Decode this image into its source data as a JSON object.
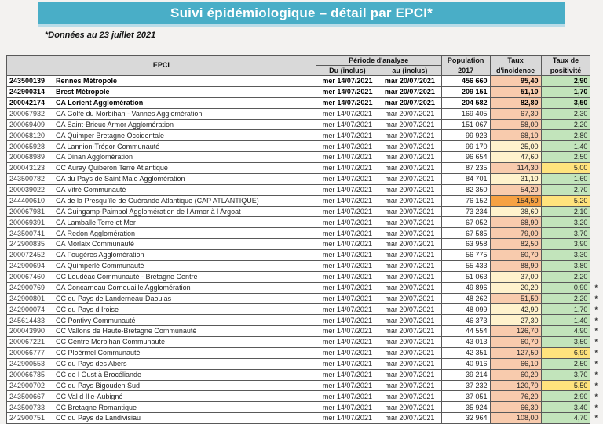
{
  "title": "Suivi épidémiologique – détail par EPCI*",
  "subtitle": "*Données au 23 juillet 2021",
  "colors": {
    "banner": "#49aec7",
    "header_bg": "#d9d9d9",
    "border": "#595959",
    "cream": "#fff2cc",
    "salmon": "#f8cbad",
    "orange": "#f6a143",
    "green": "#c2e4bb",
    "yellow": "#ffe37d",
    "link_blue": "#2e74b5"
  },
  "table": {
    "headers": {
      "epci": "EPCI",
      "periode": "Période d'analyse",
      "du": "Du (inclus)",
      "au": "au (inclus)",
      "population_l1": "Population",
      "population_l2": "2017",
      "incidence_l1": "Taux",
      "incidence_l2": "d'incidence",
      "positivite_l1": "Taux de",
      "positivite_l2": "positivité"
    },
    "rows": [
      {
        "code": "243500139",
        "name": "Rennes Métropole",
        "du": "mer 14/07/2021",
        "au": "mar 20/07/2021",
        "population": "456 660",
        "incidence": "95,40",
        "inc_color": "salmon",
        "positivite": "2,90",
        "pos_color": "green",
        "bold": true,
        "au_highlight": true,
        "note": ""
      },
      {
        "code": "242900314",
        "name": "Brest Métropole",
        "du": "mer 14/07/2021",
        "au": "mar 20/07/2021",
        "population": "209 151",
        "incidence": "51,10",
        "inc_color": "salmon",
        "positivite": "1,70",
        "pos_color": "green",
        "bold": true,
        "note": ""
      },
      {
        "code": "200042174",
        "name": "CA Lorient Agglomération",
        "du": "mer 14/07/2021",
        "au": "mar 20/07/2021",
        "population": "204 582",
        "incidence": "82,80",
        "inc_color": "salmon",
        "positivite": "3,50",
        "pos_color": "green",
        "bold": true,
        "note": ""
      },
      {
        "code": "200067932",
        "name": "CA Golfe du Morbihan - Vannes Agglomération",
        "du": "mer 14/07/2021",
        "au": "mar 20/07/2021",
        "population": "169 405",
        "incidence": "67,30",
        "inc_color": "salmon",
        "positivite": "2,30",
        "pos_color": "green",
        "note": ""
      },
      {
        "code": "200069409",
        "name": "CA Saint-Brieuc Armor Agglomération",
        "du": "mer 14/07/2021",
        "au": "mar 20/07/2021",
        "population": "151 067",
        "incidence": "58,00",
        "inc_color": "salmon",
        "positivite": "2,20",
        "pos_color": "green",
        "note": ""
      },
      {
        "code": "200068120",
        "name": "CA Quimper Bretagne Occidentale",
        "du": "mer 14/07/2021",
        "au": "mar 20/07/2021",
        "population": "99 923",
        "incidence": "68,10",
        "inc_color": "salmon",
        "positivite": "2,80",
        "pos_color": "green",
        "note": ""
      },
      {
        "code": "200065928",
        "name": "CA Lannion-Trégor Communauté",
        "du": "mer 14/07/2021",
        "au": "mar 20/07/2021",
        "population": "99 170",
        "incidence": "25,00",
        "inc_color": "cream",
        "positivite": "1,40",
        "pos_color": "green",
        "note": ""
      },
      {
        "code": "200068989",
        "name": "CA Dinan Agglomération",
        "du": "mer 14/07/2021",
        "au": "mar 20/07/2021",
        "population": "96 654",
        "incidence": "47,60",
        "inc_color": "cream",
        "positivite": "2,50",
        "pos_color": "green",
        "note": ""
      },
      {
        "code": "200043123",
        "name": "CC Auray Quiberon Terre Atlantique",
        "du": "mer 14/07/2021",
        "au": "mar 20/07/2021",
        "population": "87 235",
        "incidence": "114,30",
        "inc_color": "salmon",
        "positivite": "5,00",
        "pos_color": "yellow",
        "note": ""
      },
      {
        "code": "243500782",
        "name": "CA du Pays de Saint Malo Agglomération",
        "du": "mer 14/07/2021",
        "au": "mar 20/07/2021",
        "population": "84 701",
        "incidence": "31,10",
        "inc_color": "cream",
        "positivite": "1,60",
        "pos_color": "green",
        "note": ""
      },
      {
        "code": "200039022",
        "name": "CA Vitré Communauté",
        "du": "mer 14/07/2021",
        "au": "mar 20/07/2021",
        "population": "82 350",
        "incidence": "54,20",
        "inc_color": "salmon",
        "positivite": "2,70",
        "pos_color": "green",
        "note": ""
      },
      {
        "code": "244400610",
        "name": "CA de la Presqu île de Guérande Atlantique (CAP ATLANTIQUE)",
        "du": "mer 14/07/2021",
        "au": "mar 20/07/2021",
        "population": "76 152",
        "incidence": "154,50",
        "inc_color": "orange",
        "positivite": "5,20",
        "pos_color": "yellow",
        "note": ""
      },
      {
        "code": "200067981",
        "name": "CA Guingamp-Paimpol Agglomération de l Armor à  l Argoat",
        "du": "mer 14/07/2021",
        "au": "mar 20/07/2021",
        "population": "73 234",
        "incidence": "38,60",
        "inc_color": "cream",
        "positivite": "2,10",
        "pos_color": "green",
        "note": ""
      },
      {
        "code": "200069391",
        "name": "CA Lamballe Terre et Mer",
        "du": "mer 14/07/2021",
        "au": "mar 20/07/2021",
        "population": "67 052",
        "incidence": "68,90",
        "inc_color": "salmon",
        "positivite": "3,20",
        "pos_color": "green",
        "note": ""
      },
      {
        "code": "243500741",
        "name": "CA Redon Agglomération",
        "du": "mer 14/07/2021",
        "au": "mar 20/07/2021",
        "population": "67 585",
        "incidence": "79,00",
        "inc_color": "salmon",
        "positivite": "3,70",
        "pos_color": "green",
        "note": ""
      },
      {
        "code": "242900835",
        "name": "CA Morlaix Communauté",
        "du": "mer 14/07/2021",
        "au": "mar 20/07/2021",
        "population": "63 958",
        "incidence": "82,50",
        "inc_color": "salmon",
        "positivite": "3,90",
        "pos_color": "green",
        "note": ""
      },
      {
        "code": "200072452",
        "name": "CA Fougères Agglomération",
        "du": "mer 14/07/2021",
        "au": "mar 20/07/2021",
        "population": "56 775",
        "incidence": "60,70",
        "inc_color": "salmon",
        "positivite": "3,30",
        "pos_color": "green",
        "note": ""
      },
      {
        "code": "242900694",
        "name": "CA Quimperlé Communauté",
        "du": "mer 14/07/2021",
        "au": "mar 20/07/2021",
        "population": "55 433",
        "incidence": "88,90",
        "inc_color": "salmon",
        "positivite": "3,80",
        "pos_color": "green",
        "note": ""
      },
      {
        "code": "200067460",
        "name": "CC Loudéac Communauté - Bretagne Centre",
        "du": "mer 14/07/2021",
        "au": "mar 20/07/2021",
        "population": "51 063",
        "incidence": "37,00",
        "inc_color": "cream",
        "positivite": "2,20",
        "pos_color": "green",
        "note": ""
      },
      {
        "code": "242900769",
        "name": "CA Concarneau Cornouaille Agglomération",
        "du": "mer 14/07/2021",
        "au": "mar 20/07/2021",
        "population": "49 896",
        "incidence": "20,20",
        "inc_color": "cream",
        "positivite": "0,90",
        "pos_color": "green",
        "note": "*"
      },
      {
        "code": "242900801",
        "name": "CC du Pays de Landerneau-Daoulas",
        "du": "mer 14/07/2021",
        "au": "mar 20/07/2021",
        "population": "48 262",
        "incidence": "51,50",
        "inc_color": "salmon",
        "positivite": "2,20",
        "pos_color": "green",
        "note": "*"
      },
      {
        "code": "242900074",
        "name": "CC du Pays d Iroise",
        "du": "mer 14/07/2021",
        "au": "mar 20/07/2021",
        "population": "48 099",
        "incidence": "42,90",
        "inc_color": "cream",
        "positivite": "1,70",
        "pos_color": "green",
        "note": "*"
      },
      {
        "code": "245614433",
        "name": "CC Pontivy Communauté",
        "du": "mer 14/07/2021",
        "au": "mar 20/07/2021",
        "population": "46 373",
        "incidence": "27,30",
        "inc_color": "cream",
        "positivite": "1,40",
        "pos_color": "green",
        "note": "*"
      },
      {
        "code": "200043990",
        "name": "CC Vallons de Haute-Bretagne Communauté",
        "du": "mer 14/07/2021",
        "au": "mar 20/07/2021",
        "population": "44 554",
        "incidence": "126,70",
        "inc_color": "salmon",
        "positivite": "4,90",
        "pos_color": "green",
        "note": "*"
      },
      {
        "code": "200067221",
        "name": "CC Centre Morbihan Communauté",
        "du": "mer 14/07/2021",
        "au": "mar 20/07/2021",
        "population": "43 013",
        "incidence": "60,70",
        "inc_color": "salmon",
        "positivite": "3,50",
        "pos_color": "green",
        "note": "*"
      },
      {
        "code": "200066777",
        "name": "CC Ploërmel Communauté",
        "du": "mer 14/07/2021",
        "au": "mar 20/07/2021",
        "population": "42 351",
        "incidence": "127,50",
        "inc_color": "salmon",
        "positivite": "6,90",
        "pos_color": "yellow",
        "note": "*"
      },
      {
        "code": "242900553",
        "name": "CC du Pays des Abers",
        "du": "mer 14/07/2021",
        "au": "mar 20/07/2021",
        "population": "40 916",
        "incidence": "66,10",
        "inc_color": "salmon",
        "positivite": "2,50",
        "pos_color": "green",
        "note": "*"
      },
      {
        "code": "200066785",
        "name": "CC de l Oust à  Brocéliande",
        "du": "mer 14/07/2021",
        "au": "mar 20/07/2021",
        "population": "39 214",
        "incidence": "60,20",
        "inc_color": "salmon",
        "positivite": "3,70",
        "pos_color": "green",
        "note": "*"
      },
      {
        "code": "242900702",
        "name": "CC du Pays Bigouden Sud",
        "du": "mer 14/07/2021",
        "au": "mar 20/07/2021",
        "population": "37 232",
        "incidence": "120,70",
        "inc_color": "salmon",
        "positivite": "5,50",
        "pos_color": "yellow",
        "note": "*"
      },
      {
        "code": "243500667",
        "name": "CC Val d Ille-Aubigné",
        "du": "mer 14/07/2021",
        "au": "mar 20/07/2021",
        "population": "37 051",
        "incidence": "76,20",
        "inc_color": "salmon",
        "positivite": "2,90",
        "pos_color": "green",
        "note": "*"
      },
      {
        "code": "243500733",
        "name": "CC Bretagne Romantique",
        "du": "mer 14/07/2021",
        "au": "mar 20/07/2021",
        "population": "35 924",
        "incidence": "66,30",
        "inc_color": "salmon",
        "positivite": "3,40",
        "pos_color": "green",
        "note": "*"
      },
      {
        "code": "242900751",
        "name": "CC du Pays de Landivisiau",
        "du": "mer 14/07/2021",
        "au": "mar 20/07/2021",
        "population": "32 964",
        "incidence": "108,00",
        "inc_color": "salmon",
        "positivite": "4,70",
        "pos_color": "green",
        "note": "*"
      }
    ]
  }
}
